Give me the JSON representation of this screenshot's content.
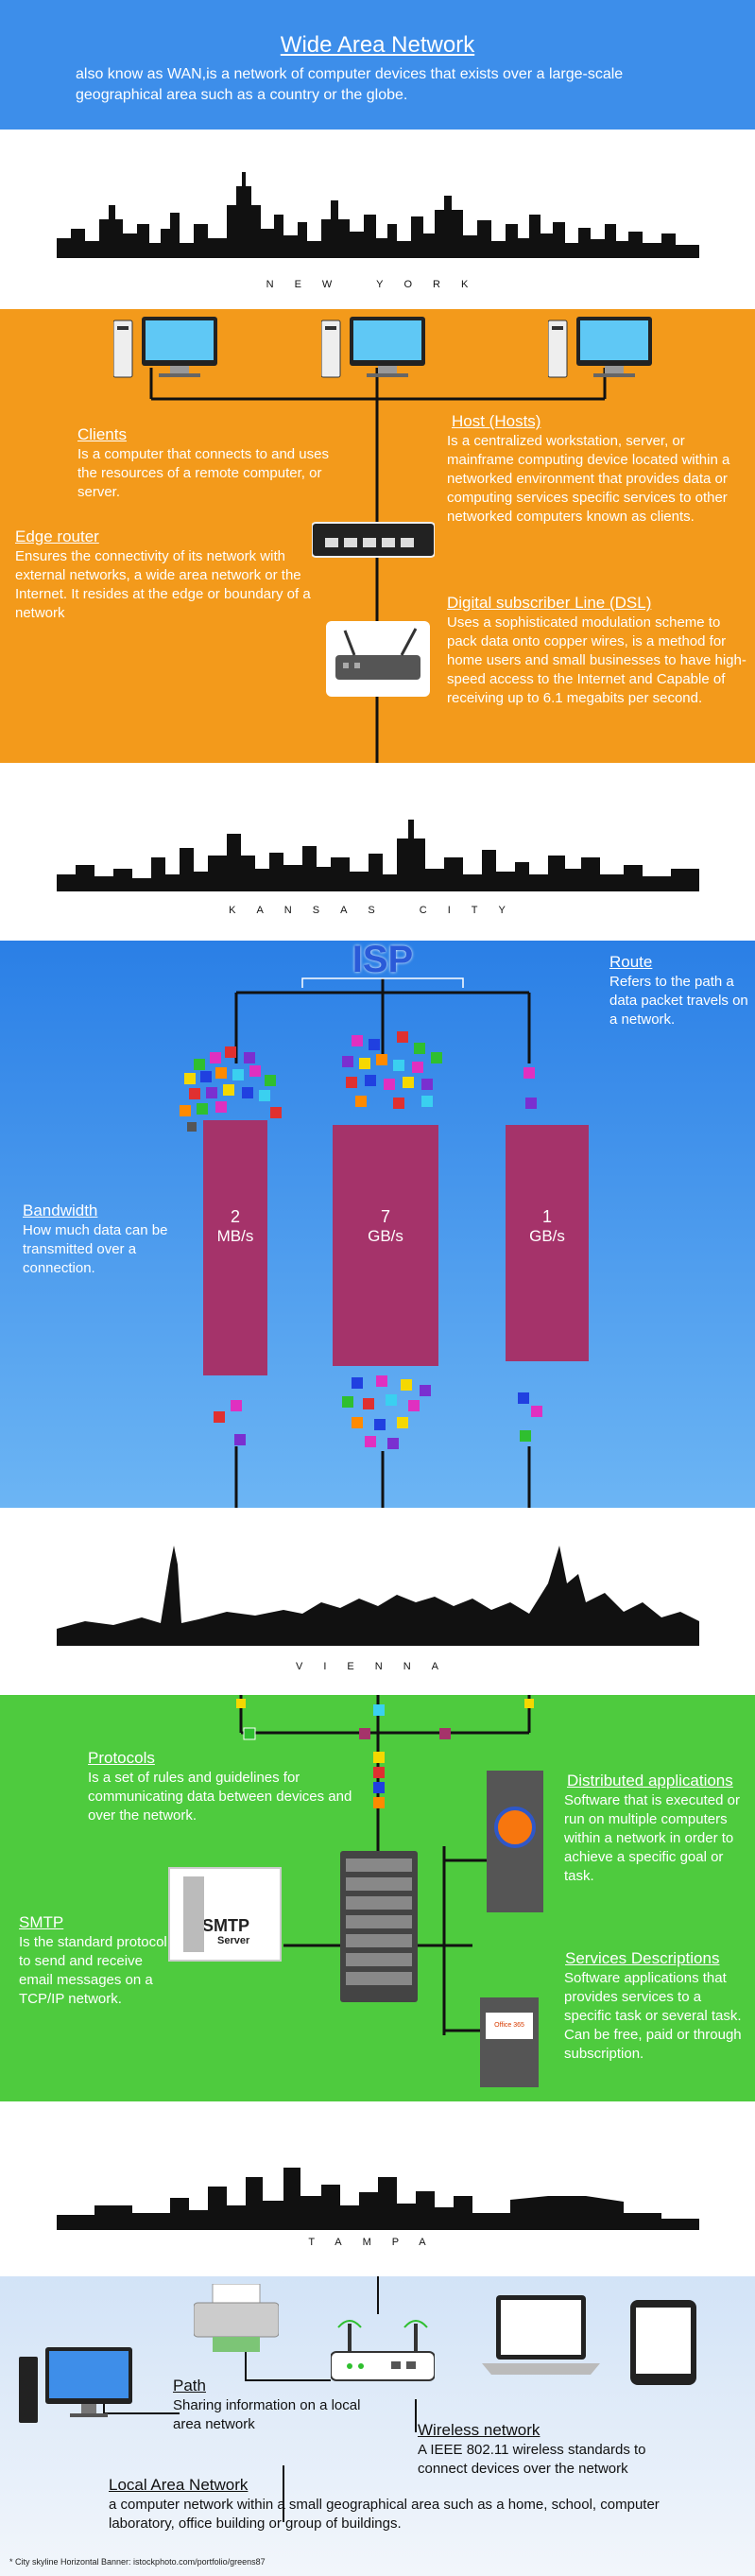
{
  "header": {
    "title": "Wide Area Network",
    "subtitle": "also know as WAN,is a network of computer devices that exists over a large-scale geographical area such as a country or the globe."
  },
  "cities": {
    "new_york": "NEW YORK",
    "kansas_city": "KANSAS CITY",
    "vienna": "VIENNA",
    "tampa": "TAMPA"
  },
  "wan_devices": {
    "clients": {
      "title": "Clients",
      "text": "Is a computer that connects to and uses the resources of a remote computer, or server."
    },
    "host": {
      "title": "Host (Hosts)",
      "text": "Is a centralized workstation, server, or mainframe computing device located within a networked environment that provides data or computing services specific services to other networked computers known as clients."
    },
    "edge_router": {
      "title": "Edge router",
      "text": "Ensures the connectivity of its network with external networks, a wide area network or the Internet. It resides at the edge or boundary of a network"
    },
    "dsl": {
      "title": "Digital subscriber Line (DSL)",
      "text": "Uses a sophisticated modulation scheme to pack data onto copper wires, is a method for home users and small businesses to have high-speed access to the Internet and Capable of receiving up to 6.1 megabits per second."
    }
  },
  "isp": {
    "logo": "ISP",
    "route": {
      "title": "Route",
      "text": "Refers to the path a data packet travels on a network."
    },
    "bandwidth": {
      "title": "Bandwidth",
      "text": "How much data can be transmitted over a connection."
    },
    "pipes": [
      {
        "value": "2",
        "unit": "MB/s"
      },
      {
        "value": "7",
        "unit": "GB/s"
      },
      {
        "value": "1",
        "unit": "GB/s"
      }
    ]
  },
  "services": {
    "protocols": {
      "title": "Protocols",
      "text": "Is a set of rules and guidelines for communicating data between devices and over the network."
    },
    "smtp": {
      "title": "SMTP",
      "text": "Is the standard protocol to send and receive email messages on a TCP/IP network.",
      "icon_label": "SMTP",
      "icon_sublabel": "Server"
    },
    "distributed": {
      "title": "Distributed applications",
      "text": "Software that is executed or run on multiple computers within a network in order to achieve a specific goal or task."
    },
    "services_desc": {
      "title": "Services Descriptions",
      "text": "Software applications that provides services to a specific task or several task. Can be free, paid or through subscription."
    },
    "office_label": "Office 365"
  },
  "lan": {
    "path": {
      "title": "Path",
      "text": "Sharing information on a local area network"
    },
    "wireless": {
      "title": "Wireless network",
      "text": "A IEEE 802.11 wireless standards to connect devices over the network"
    },
    "lan_def": {
      "title": "Local Area Network",
      "text": "a computer network within a small geographical area such as a home, school, computer laboratory, office building or group of buildings."
    }
  },
  "footer": {
    "credit": "* City skyline Horizontal Banner: istockphoto.com/portfolio/greens87"
  },
  "colors": {
    "blue": "#3d8eea",
    "orange": "#f39a1b",
    "green": "#4ecb3e",
    "lan_bg": "#d7e6f7",
    "pipe": "#a5336a"
  }
}
